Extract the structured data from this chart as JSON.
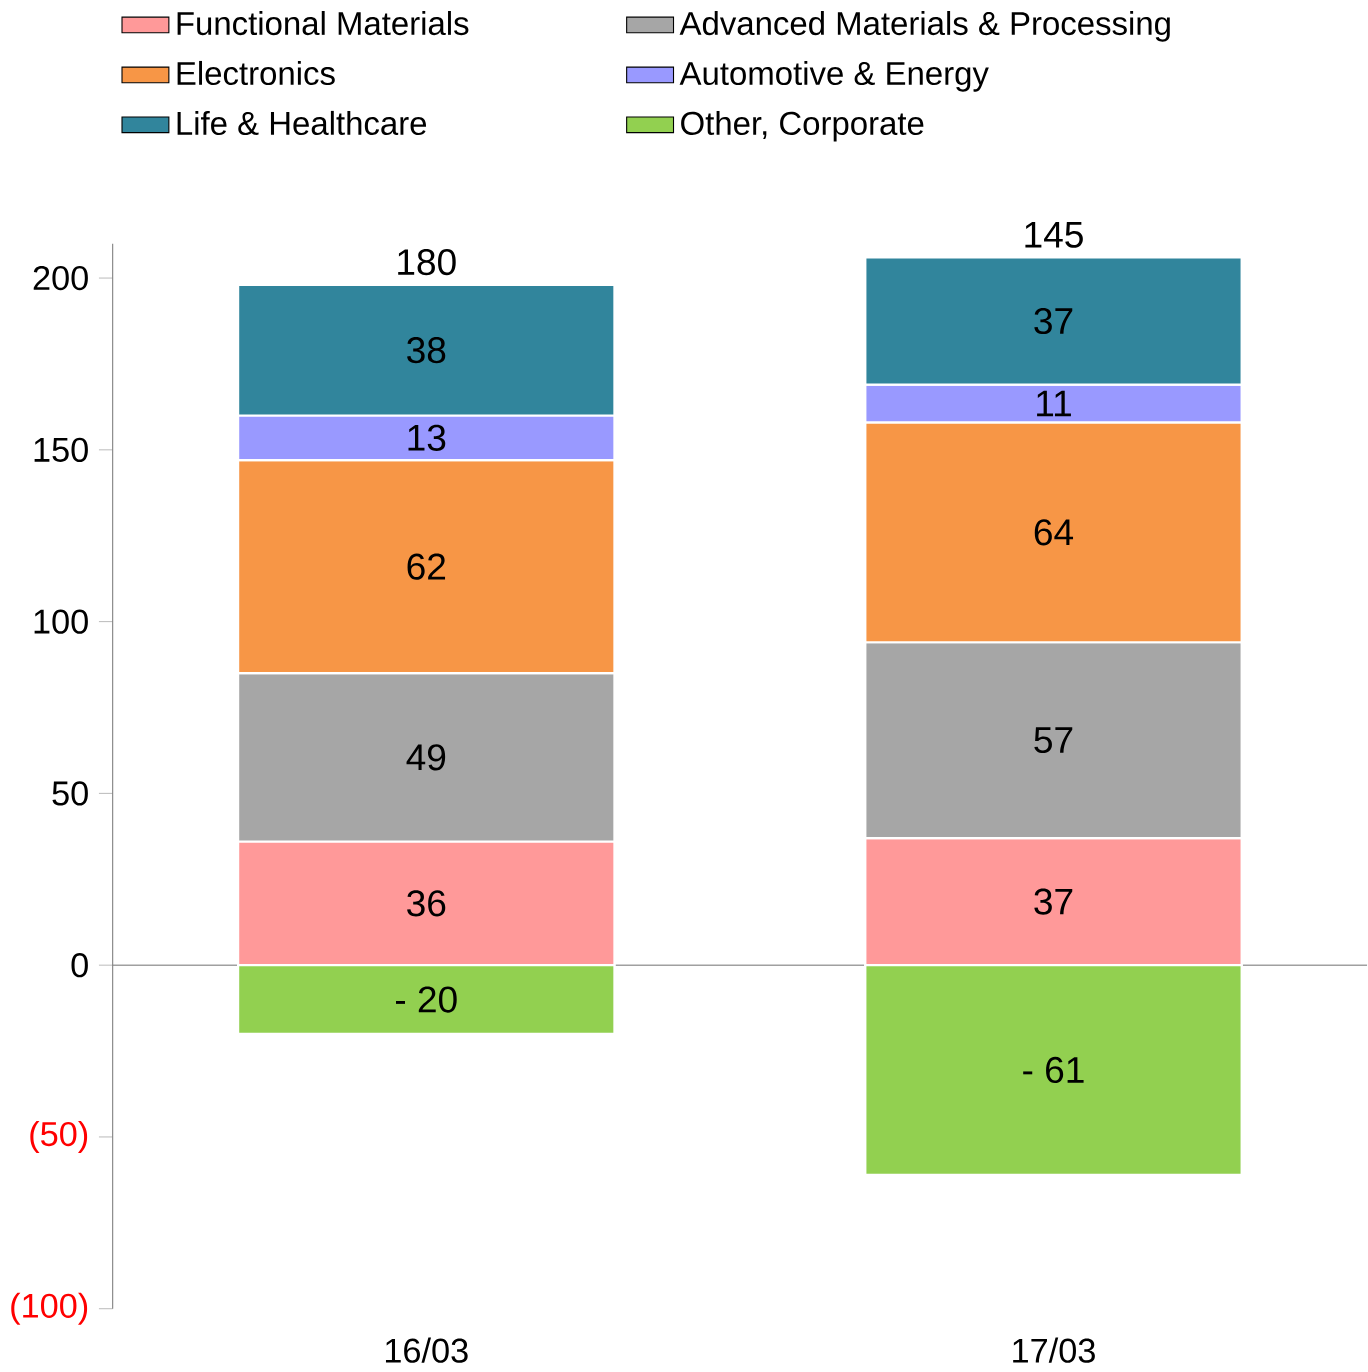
{
  "chart_data": {
    "type": "bar",
    "stacked": true,
    "categories": [
      "16/03",
      "17/03"
    ],
    "series": [
      {
        "name": "Functional Materials",
        "color": "#ff9999",
        "values": [
          36,
          37
        ],
        "value_labels": [
          "36",
          "37"
        ]
      },
      {
        "name": "Advanced Materials & Processing",
        "color": "#a6a6a6",
        "values": [
          49,
          57
        ],
        "value_labels": [
          "49",
          "57"
        ]
      },
      {
        "name": "Electronics",
        "color": "#f79646",
        "values": [
          62,
          64
        ],
        "value_labels": [
          "62",
          "64"
        ]
      },
      {
        "name": "Automotive & Energy",
        "color": "#9999ff",
        "values": [
          13,
          11
        ],
        "value_labels": [
          "13",
          "11"
        ]
      },
      {
        "name": "Life & Healthcare",
        "color": "#31859c",
        "values": [
          38,
          37
        ],
        "value_labels": [
          "38",
          "37"
        ]
      },
      {
        "name": "Other, Corporate",
        "color": "#92d050",
        "values": [
          -20,
          -61
        ],
        "value_labels": [
          "- 20",
          "- 61"
        ]
      }
    ],
    "totals": [
      "180",
      "145"
    ],
    "ylim": [
      -100,
      210
    ],
    "yticks": [
      {
        "value": -100,
        "label": "(100)"
      },
      {
        "value": -50,
        "label": "(50)"
      },
      0,
      50,
      100,
      150,
      200
    ],
    "legend": "top"
  }
}
